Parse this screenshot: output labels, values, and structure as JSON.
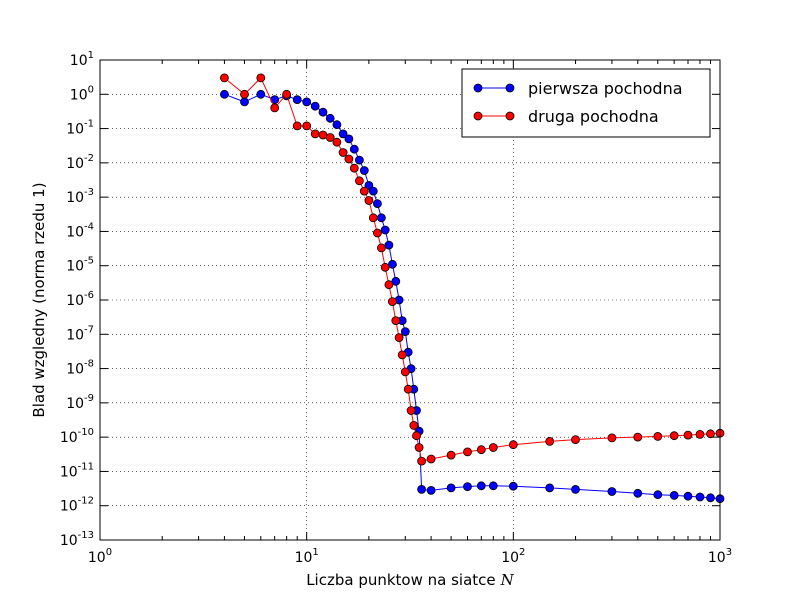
{
  "chart_data": {
    "type": "line",
    "title": "",
    "xlabel": "Liczba punktow na siatce",
    "xlabel_var": "N",
    "ylabel": "Blad wzgledny (norma rzedu 1)",
    "xscale": "log",
    "yscale": "log",
    "xlim": [
      1,
      1000
    ],
    "ylim": [
      1e-13,
      10
    ],
    "grid": true,
    "legend_position": "top-right",
    "x_ticks": [
      {
        "base": "10",
        "exp": "0"
      },
      {
        "base": "10",
        "exp": "1"
      },
      {
        "base": "10",
        "exp": "2"
      },
      {
        "base": "10",
        "exp": "3"
      }
    ],
    "y_ticks": [
      {
        "base": "10",
        "exp": "1"
      },
      {
        "base": "10",
        "exp": "0"
      },
      {
        "base": "10",
        "exp": "-1"
      },
      {
        "base": "10",
        "exp": "-2"
      },
      {
        "base": "10",
        "exp": "-3"
      },
      {
        "base": "10",
        "exp": "-4"
      },
      {
        "base": "10",
        "exp": "-5"
      },
      {
        "base": "10",
        "exp": "-6"
      },
      {
        "base": "10",
        "exp": "-7"
      },
      {
        "base": "10",
        "exp": "-8"
      },
      {
        "base": "10",
        "exp": "-9"
      },
      {
        "base": "10",
        "exp": "-10"
      },
      {
        "base": "10",
        "exp": "-11"
      },
      {
        "base": "10",
        "exp": "-12"
      },
      {
        "base": "10",
        "exp": "-13"
      }
    ],
    "series": [
      {
        "name": "pierwsza pochodna",
        "color": "#0000ff",
        "x": [
          4,
          5,
          6,
          7,
          8,
          9,
          10,
          11,
          12,
          13,
          14,
          15,
          16,
          17,
          18,
          19,
          20,
          21,
          22,
          23,
          24,
          25,
          26,
          27,
          28,
          29,
          30,
          31,
          32,
          33,
          34,
          35,
          36,
          40,
          50,
          60,
          70,
          80,
          100,
          150,
          200,
          300,
          400,
          500,
          600,
          700,
          800,
          900,
          1000
        ],
        "y": [
          1.0,
          0.6,
          1.0,
          0.7,
          0.9,
          0.7,
          0.6,
          0.45,
          0.3,
          0.2,
          0.13,
          0.07,
          0.05,
          0.025,
          0.012,
          0.006,
          0.0022,
          0.0015,
          0.00065,
          0.00025,
          0.00011,
          4e-05,
          1.1e-05,
          3.5e-06,
          1e-06,
          2.5e-07,
          1.2e-07,
          3e-08,
          1e-08,
          2.5e-09,
          6e-10,
          1.5e-10,
          3e-12,
          2.8e-12,
          3.3e-12,
          3.6e-12,
          3.8e-12,
          3.8e-12,
          3.7e-12,
          3.3e-12,
          3e-12,
          2.6e-12,
          2.3e-12,
          2.1e-12,
          2e-12,
          1.9e-12,
          1.8e-12,
          1.7e-12,
          1.6e-12
        ]
      },
      {
        "name": "druga pochodna",
        "color": "#ff0000",
        "x": [
          4,
          5,
          6,
          7,
          8,
          9,
          10,
          11,
          12,
          13,
          14,
          15,
          16,
          17,
          18,
          19,
          20,
          21,
          22,
          23,
          24,
          25,
          26,
          27,
          28,
          29,
          30,
          31,
          32,
          33,
          34,
          35,
          36,
          40,
          50,
          60,
          70,
          80,
          100,
          150,
          200,
          300,
          400,
          500,
          600,
          700,
          800,
          900,
          1000
        ],
        "y": [
          3.0,
          1.0,
          3.0,
          0.4,
          1.0,
          0.12,
          0.12,
          0.07,
          0.065,
          0.055,
          0.04,
          0.02,
          0.013,
          0.007,
          0.003,
          0.0015,
          0.0008,
          0.00025,
          9e-05,
          3.3e-05,
          9e-06,
          2.8e-06,
          9e-07,
          2.5e-07,
          8e-08,
          2.5e-08,
          8e-09,
          2.5e-09,
          6e-10,
          2.2e-10,
          1.1e-10,
          5e-11,
          2e-11,
          2.3e-11,
          3e-11,
          3.7e-11,
          4.3e-11,
          5e-11,
          6e-11,
          7.5e-11,
          8.5e-11,
          9.5e-11,
          1e-10,
          1.05e-10,
          1.1e-10,
          1.15e-10,
          1.2e-10,
          1.25e-10,
          1.3e-10
        ]
      }
    ]
  }
}
